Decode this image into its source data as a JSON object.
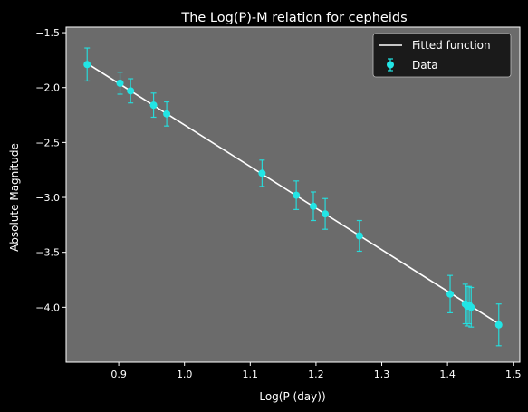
{
  "chart_data": {
    "type": "scatter",
    "title": "The Log(P)-M relation for cepheids",
    "xlabel": "Log(P (day))",
    "ylabel": "Absolute Magnitude",
    "xlim": [
      0.82,
      1.51
    ],
    "ylim": [
      -4.5,
      -1.45
    ],
    "xticks": [
      0.9,
      1.0,
      1.1,
      1.2,
      1.3,
      1.4,
      1.5
    ],
    "xtick_labels": [
      "0.9",
      "1.0",
      "1.1",
      "1.2",
      "1.3",
      "1.4",
      "1.5"
    ],
    "yticks": [
      -1.5,
      -2.0,
      -2.5,
      -3.0,
      -3.5,
      -4.0
    ],
    "ytick_labels": [
      "−1.5",
      "−2.0",
      "−2.5",
      "−3.0",
      "−3.5",
      "−4.0"
    ],
    "grid": false,
    "legend_position": "top-right",
    "series": [
      {
        "name": "Fitted function",
        "kind": "line",
        "color": "#ffffff",
        "x": [
          0.852,
          1.478
        ],
        "y": [
          -1.78,
          -4.15
        ]
      },
      {
        "name": "Data",
        "kind": "errorbar",
        "color": "#22e5e5",
        "points": [
          {
            "x": 0.852,
            "y": -1.79,
            "err": 0.15
          },
          {
            "x": 0.902,
            "y": -1.96,
            "err": 0.1
          },
          {
            "x": 0.918,
            "y": -2.03,
            "err": 0.11
          },
          {
            "x": 0.953,
            "y": -2.16,
            "err": 0.11
          },
          {
            "x": 0.973,
            "y": -2.24,
            "err": 0.11
          },
          {
            "x": 1.118,
            "y": -2.78,
            "err": 0.12
          },
          {
            "x": 1.17,
            "y": -2.98,
            "err": 0.13
          },
          {
            "x": 1.196,
            "y": -3.08,
            "err": 0.13
          },
          {
            "x": 1.214,
            "y": -3.15,
            "err": 0.14
          },
          {
            "x": 1.266,
            "y": -3.35,
            "err": 0.14
          },
          {
            "x": 1.404,
            "y": -3.88,
            "err": 0.17
          },
          {
            "x": 1.427,
            "y": -3.97,
            "err": 0.18
          },
          {
            "x": 1.43,
            "y": -3.99,
            "err": 0.18
          },
          {
            "x": 1.433,
            "y": -3.98,
            "err": 0.17
          },
          {
            "x": 1.436,
            "y": -4.0,
            "err": 0.18
          },
          {
            "x": 1.478,
            "y": -4.16,
            "err": 0.19
          }
        ]
      }
    ]
  },
  "style": {
    "figure_bg": "#000000",
    "axes_bg": "#6b6b6b",
    "text_color": "#ffffff",
    "legend_bg": "#1a1a1a"
  }
}
